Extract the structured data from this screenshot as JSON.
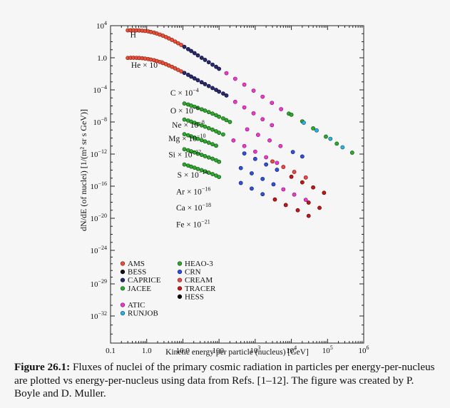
{
  "chart_data": {
    "type": "scatter",
    "xscale": "log",
    "yscale": "log",
    "xlim": [
      0.1,
      1000000
    ],
    "ylim": [
      1e-35,
      10000
    ],
    "xlabel": "Kinetic energy per particle (nucleus)  [GeV]",
    "ylabel": "dN/dE (of nuclei)  [1/(m² sr s GeV)]",
    "x_ticks": [
      {
        "value": 0.1,
        "label": "0.1"
      },
      {
        "value": 1,
        "label": "1.0"
      },
      {
        "value": 10,
        "label": "10.0"
      },
      {
        "value": 100,
        "label": "100."
      },
      {
        "value": 1000,
        "label": "10",
        "exp": "3"
      },
      {
        "value": 10000,
        "label": "10",
        "exp": "4"
      },
      {
        "value": 100000,
        "label": "10",
        "exp": "5"
      },
      {
        "value": 1000000,
        "label": "10",
        "exp": "6"
      }
    ],
    "y_ticks": [
      {
        "value": 10000,
        "label": "10",
        "exp": "4"
      },
      {
        "value": 1,
        "label": "1.0",
        "exp": ""
      },
      {
        "value": 0.0001,
        "label": "10",
        "exp": "−4"
      },
      {
        "value": 1e-08,
        "label": "10",
        "exp": "−8"
      },
      {
        "value": 1e-12,
        "label": "10",
        "exp": "−12"
      },
      {
        "value": 1e-16,
        "label": "10",
        "exp": "−16"
      },
      {
        "value": 1e-20,
        "label": "10",
        "exp": "−20"
      },
      {
        "value": 1e-24,
        "label": "10",
        "exp": "−24"
      },
      {
        "value": 1e-29,
        "label": "10",
        "exp": "−29"
      },
      {
        "value": 1e-32,
        "label": "10",
        "exp": "−32"
      }
    ],
    "experiments": [
      {
        "name": "AMS",
        "color": "#e8503a",
        "edge": "#7a1a0a"
      },
      {
        "name": "BESS",
        "color": "#111111",
        "edge": "#000000"
      },
      {
        "name": "CAPRICE",
        "color": "#2a2a6a",
        "edge": "#000033"
      },
      {
        "name": "JACEE",
        "color": "#2ea82e",
        "edge": "#0a4a0a"
      },
      {
        "name": "ATIC",
        "color": "#e83cc8",
        "edge": "#801070"
      },
      {
        "name": "RUNJOB",
        "color": "#2ab4d8",
        "edge": "#0a4a6a"
      },
      {
        "name": "HEAO-3",
        "color": "#2ea82e",
        "edge": "#0a4a0a"
      },
      {
        "name": "CRN",
        "color": "#3050d8",
        "edge": "#0a1a6a"
      },
      {
        "name": "CREAM",
        "color": "#e84848",
        "edge": "#7a0a0a"
      },
      {
        "name": "TRACER",
        "color": "#c01818",
        "edge": "#500000"
      },
      {
        "name": "HESS",
        "color": "#080808",
        "edge": "#000000"
      }
    ],
    "series": [
      {
        "name": "H",
        "label": "H",
        "sup": "",
        "label_x": 0.35,
        "label_y": 330,
        "points": [
          {
            "exp": "AMS",
            "x": [
              0.3,
              0.36,
              0.43,
              0.52,
              0.62,
              0.75,
              0.9,
              1.1,
              1.3,
              1.6,
              1.9,
              2.3,
              2.8,
              3.4,
              4.1,
              5,
              6.1,
              7.4,
              9
            ],
            "y": [
              2600,
              2700,
              2700,
              2650,
              2550,
              2400,
              2200,
              1950,
              1650,
              1350,
              1050,
              780,
              560,
              390,
              260,
              170,
              105,
              65,
              40
            ]
          },
          {
            "exp": "CAPRICE",
            "x": [
              11,
              14,
              17,
              21,
              26,
              33,
              41,
              52,
              66,
              83,
              100
            ],
            "y": [
              23,
              12,
              7,
              3.8,
              2.0,
              1.0,
              0.55,
              0.28,
              0.14,
              0.075,
              0.042
            ]
          },
          {
            "exp": "ATIC",
            "x": [
              160,
              280,
              500,
              900,
              1600,
              2900,
              5200
            ],
            "y": [
              0.012,
              0.0024,
              0.00045,
              8e-05,
              1.4e-05,
              2.4e-06,
              4e-07
            ]
          },
          {
            "exp": "HEAO-3",
            "x": [
              8500
            ],
            "y": [
              1.1e-07
            ]
          },
          {
            "exp": "JACEE",
            "x": [
              10000,
              20000,
              40000,
              90000,
              180000,
              480000
            ],
            "y": [
              8e-08,
              1.2e-08,
              1.6e-09,
              1.5e-10,
              2e-11,
              1.5e-12
            ]
          },
          {
            "exp": "RUNJOB",
            "x": [
              22000,
              50000,
              120000,
              260000
            ],
            "y": [
              8e-09,
              9e-10,
              8e-11,
              7e-12
            ]
          }
        ]
      },
      {
        "name": "He",
        "label": "He × 10",
        "sup": "−2",
        "label_x": 0.37,
        "label_y": 0.055,
        "points": [
          {
            "exp": "AMS",
            "x": [
              0.3,
              0.36,
              0.43,
              0.52,
              0.62,
              0.75,
              0.9,
              1.1,
              1.3,
              1.6,
              1.9,
              2.3,
              2.8,
              3.4,
              4.1,
              5,
              6.1,
              7.4,
              9
            ],
            "y": [
              0.95,
              1.0,
              1.0,
              0.98,
              0.94,
              0.88,
              0.8,
              0.7,
              0.6,
              0.5,
              0.4,
              0.3,
              0.22,
              0.16,
              0.11,
              0.075,
              0.048,
              0.031,
              0.02
            ]
          },
          {
            "exp": "CAPRICE",
            "x": [
              11,
              14,
              17,
              21,
              26,
              33,
              41,
              52,
              66,
              83,
              100,
              130,
              160
            ],
            "y": [
              0.013,
              0.0075,
              0.0045,
              0.0027,
              0.0016,
              0.0009,
              0.00052,
              0.0003,
              0.00017,
              0.0001,
              6e-05,
              3.5e-05,
              2e-05
            ]
          },
          {
            "exp": "ATIC",
            "x": [
              280,
              500,
              900,
              1600,
              2900
            ],
            "y": [
              3.2e-06,
              6.5e-07,
              1.2e-07,
              2.2e-08,
              4e-09
            ]
          }
        ]
      },
      {
        "name": "C",
        "label": "C × 10",
        "sup": "−4",
        "label_x": 4.5,
        "label_y": 2e-05,
        "points": [
          {
            "exp": "HEAO-3",
            "x": [
              11,
              14,
              17,
              21,
              26,
              33,
              41,
              52,
              66,
              83,
              100,
              130,
              160,
              200
            ],
            "y": [
              2e-06,
              1.5e-06,
              1.1e-06,
              8e-07,
              5.5e-07,
              3.8e-07,
              2.6e-07,
              1.7e-07,
              1.1e-07,
              7e-08,
              4.5e-08,
              2.8e-08,
              1.7e-08,
              1e-08
            ]
          },
          {
            "exp": "ATIC",
            "x": [
              600,
              1200,
              2500,
              5000
            ],
            "y": [
              1.2e-09,
              2.5e-10,
              5e-11,
              1e-11
            ]
          },
          {
            "exp": "CRN",
            "x": [
              11000,
              20000
            ],
            "y": [
              1.8e-12,
              5e-13
            ]
          }
        ]
      },
      {
        "name": "O",
        "label": "O × 10",
        "sup": "−6",
        "label_x": 4.5,
        "label_y": 1.2e-07,
        "points": [
          {
            "exp": "HEAO-3",
            "x": [
              11,
              14,
              17,
              21,
              26,
              33,
              41,
              52,
              66,
              83,
              100,
              130
            ],
            "y": [
              2e-08,
              1.5e-08,
              1.1e-08,
              8e-09,
              5.5e-09,
              3.8e-09,
              2.6e-09,
              1.7e-09,
              1.1e-09,
              7e-10,
              4.5e-10,
              2.8e-10
            ]
          },
          {
            "exp": "ATIC",
            "x": [
              250,
              500,
              1000,
              2000,
              4000
            ],
            "y": [
              5e-11,
              1e-11,
              2e-12,
              4e-13,
              8e-14
            ]
          },
          {
            "exp": "CREAM",
            "x": [
              3000,
              6000,
              12000,
              25000
            ],
            "y": [
              1.2e-13,
              2.5e-14,
              6e-15,
              1.2e-15
            ]
          }
        ]
      },
      {
        "name": "Ne",
        "label": "Ne × 10",
        "sup": "−8",
        "label_x": 5.0,
        "label_y": 2e-09,
        "points": [
          {
            "exp": "HEAO-3",
            "x": [
              11,
              14,
              17,
              21,
              26,
              33,
              41,
              52,
              66,
              83
            ],
            "y": [
              3e-10,
              2.2e-10,
              1.6e-10,
              1.1e-10,
              8e-11,
              5.5e-11,
              3.8e-11,
              2.6e-11,
              1.7e-11,
              1.1e-11
            ]
          },
          {
            "exp": "CRN",
            "x": [
              500,
              1000,
              2000,
              4000
            ],
            "y": [
              1.2e-12,
              2.5e-13,
              5e-14,
              1.1e-14
            ]
          },
          {
            "exp": "TRACER",
            "x": [
              10000,
              20000,
              40000,
              80000
            ],
            "y": [
              1.5e-15,
              3e-16,
              7e-17,
              1.5e-17
            ]
          }
        ]
      },
      {
        "name": "Mg",
        "label": "Mg × 10",
        "sup": "−10",
        "label_x": 4.0,
        "label_y": 4e-11,
        "points": [
          {
            "exp": "HEAO-3",
            "x": [
              11,
              14,
              17,
              21,
              26,
              33,
              41,
              52,
              66,
              83,
              100
            ],
            "y": [
              4e-12,
              3e-12,
              2.2e-12,
              1.6e-12,
              1.1e-12,
              8e-13,
              5.5e-13,
              3.8e-13,
              2.6e-13,
              1.7e-13,
              1.1e-13
            ]
          },
          {
            "exp": "CRN",
            "x": [
              400,
              800,
              1600,
              3200
            ],
            "y": [
              1.8e-14,
              4e-15,
              8e-16,
              1.7e-16
            ]
          },
          {
            "exp": "ATIC",
            "x": [
              6000,
              12000,
              25000
            ],
            "y": [
              4e-17,
              9e-18,
              2e-18
            ]
          },
          {
            "exp": "TRACER",
            "x": [
              30000,
              60000
            ],
            "y": [
              9e-19,
              2e-19
            ]
          }
        ]
      },
      {
        "name": "Si",
        "label": "Si × 10",
        "sup": "−12",
        "label_x": 4.0,
        "label_y": 4e-13,
        "points": [
          {
            "exp": "HEAO-3",
            "x": [
              11,
              14,
              17,
              21,
              26,
              33,
              41,
              52,
              66,
              83,
              100
            ],
            "y": [
              5e-14,
              3.7e-14,
              2.7e-14,
              2e-14,
              1.4e-14,
              1e-14,
              7e-15,
              4.8e-15,
              3.2e-15,
              2.1e-15,
              1.4e-15
            ]
          },
          {
            "exp": "CRN",
            "x": [
              400,
              800,
              1600
            ],
            "y": [
              2.5e-16,
              5e-17,
              1e-17
            ]
          },
          {
            "exp": "TRACER",
            "x": [
              3500,
              7000,
              15000,
              30000
            ],
            "y": [
              2.2e-18,
              4.5e-19,
              1e-19,
              2e-20
            ]
          }
        ]
      }
    ],
    "series_rows": [
      {
        "name": "S",
        "label": "S × 10",
        "sup": "−14",
        "label_x": 7.0,
        "label_y": 1.2e-15
      },
      {
        "name": "Ar",
        "label": "Ar × 10",
        "sup": "−16",
        "label_x": 6.5,
        "label_y": 1e-17
      },
      {
        "name": "Ca",
        "label": "Ca × 10",
        "sup": "−18",
        "label_x": 6.5,
        "label_y": 1e-19
      },
      {
        "name": "Fe",
        "label": "Fe × 10",
        "sup": "−21",
        "label_x": 6.5,
        "label_y": 8e-22
      }
    ],
    "legend": {
      "placement": "bottom-left",
      "columns": [
        [
          "AMS",
          "BESS",
          "CAPRICE",
          "JACEE",
          "",
          "ATIC",
          "RUNJOB"
        ],
        [
          "HEAO-3",
          "CRN",
          "CREAM",
          "TRACER",
          "HESS"
        ]
      ]
    }
  },
  "caption": {
    "label": "Figure 26.1:",
    "text": " Fluxes of nuclei of the primary cosmic radiation in particles per energy-per-nucleus are plotted vs energy-per-nucleus using data from Refs. [1–12]. The figure was created by P. Boyle and D. Muller."
  }
}
